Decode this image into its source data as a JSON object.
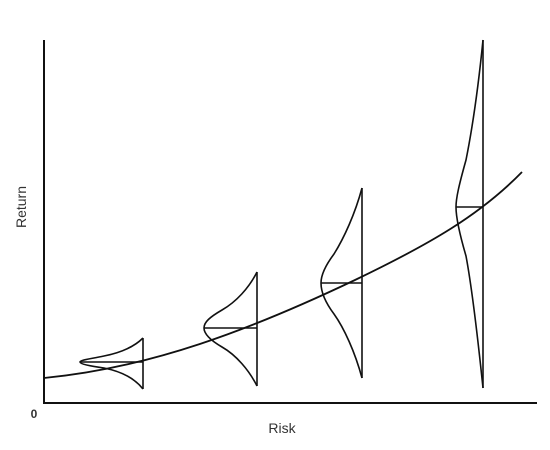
{
  "figure": {
    "y_axis_label": "Return",
    "x_axis_label": "Risk",
    "origin_label": "0"
  },
  "colors": {
    "line": "#111111",
    "text": "#333333",
    "background": "#ffffff"
  }
}
